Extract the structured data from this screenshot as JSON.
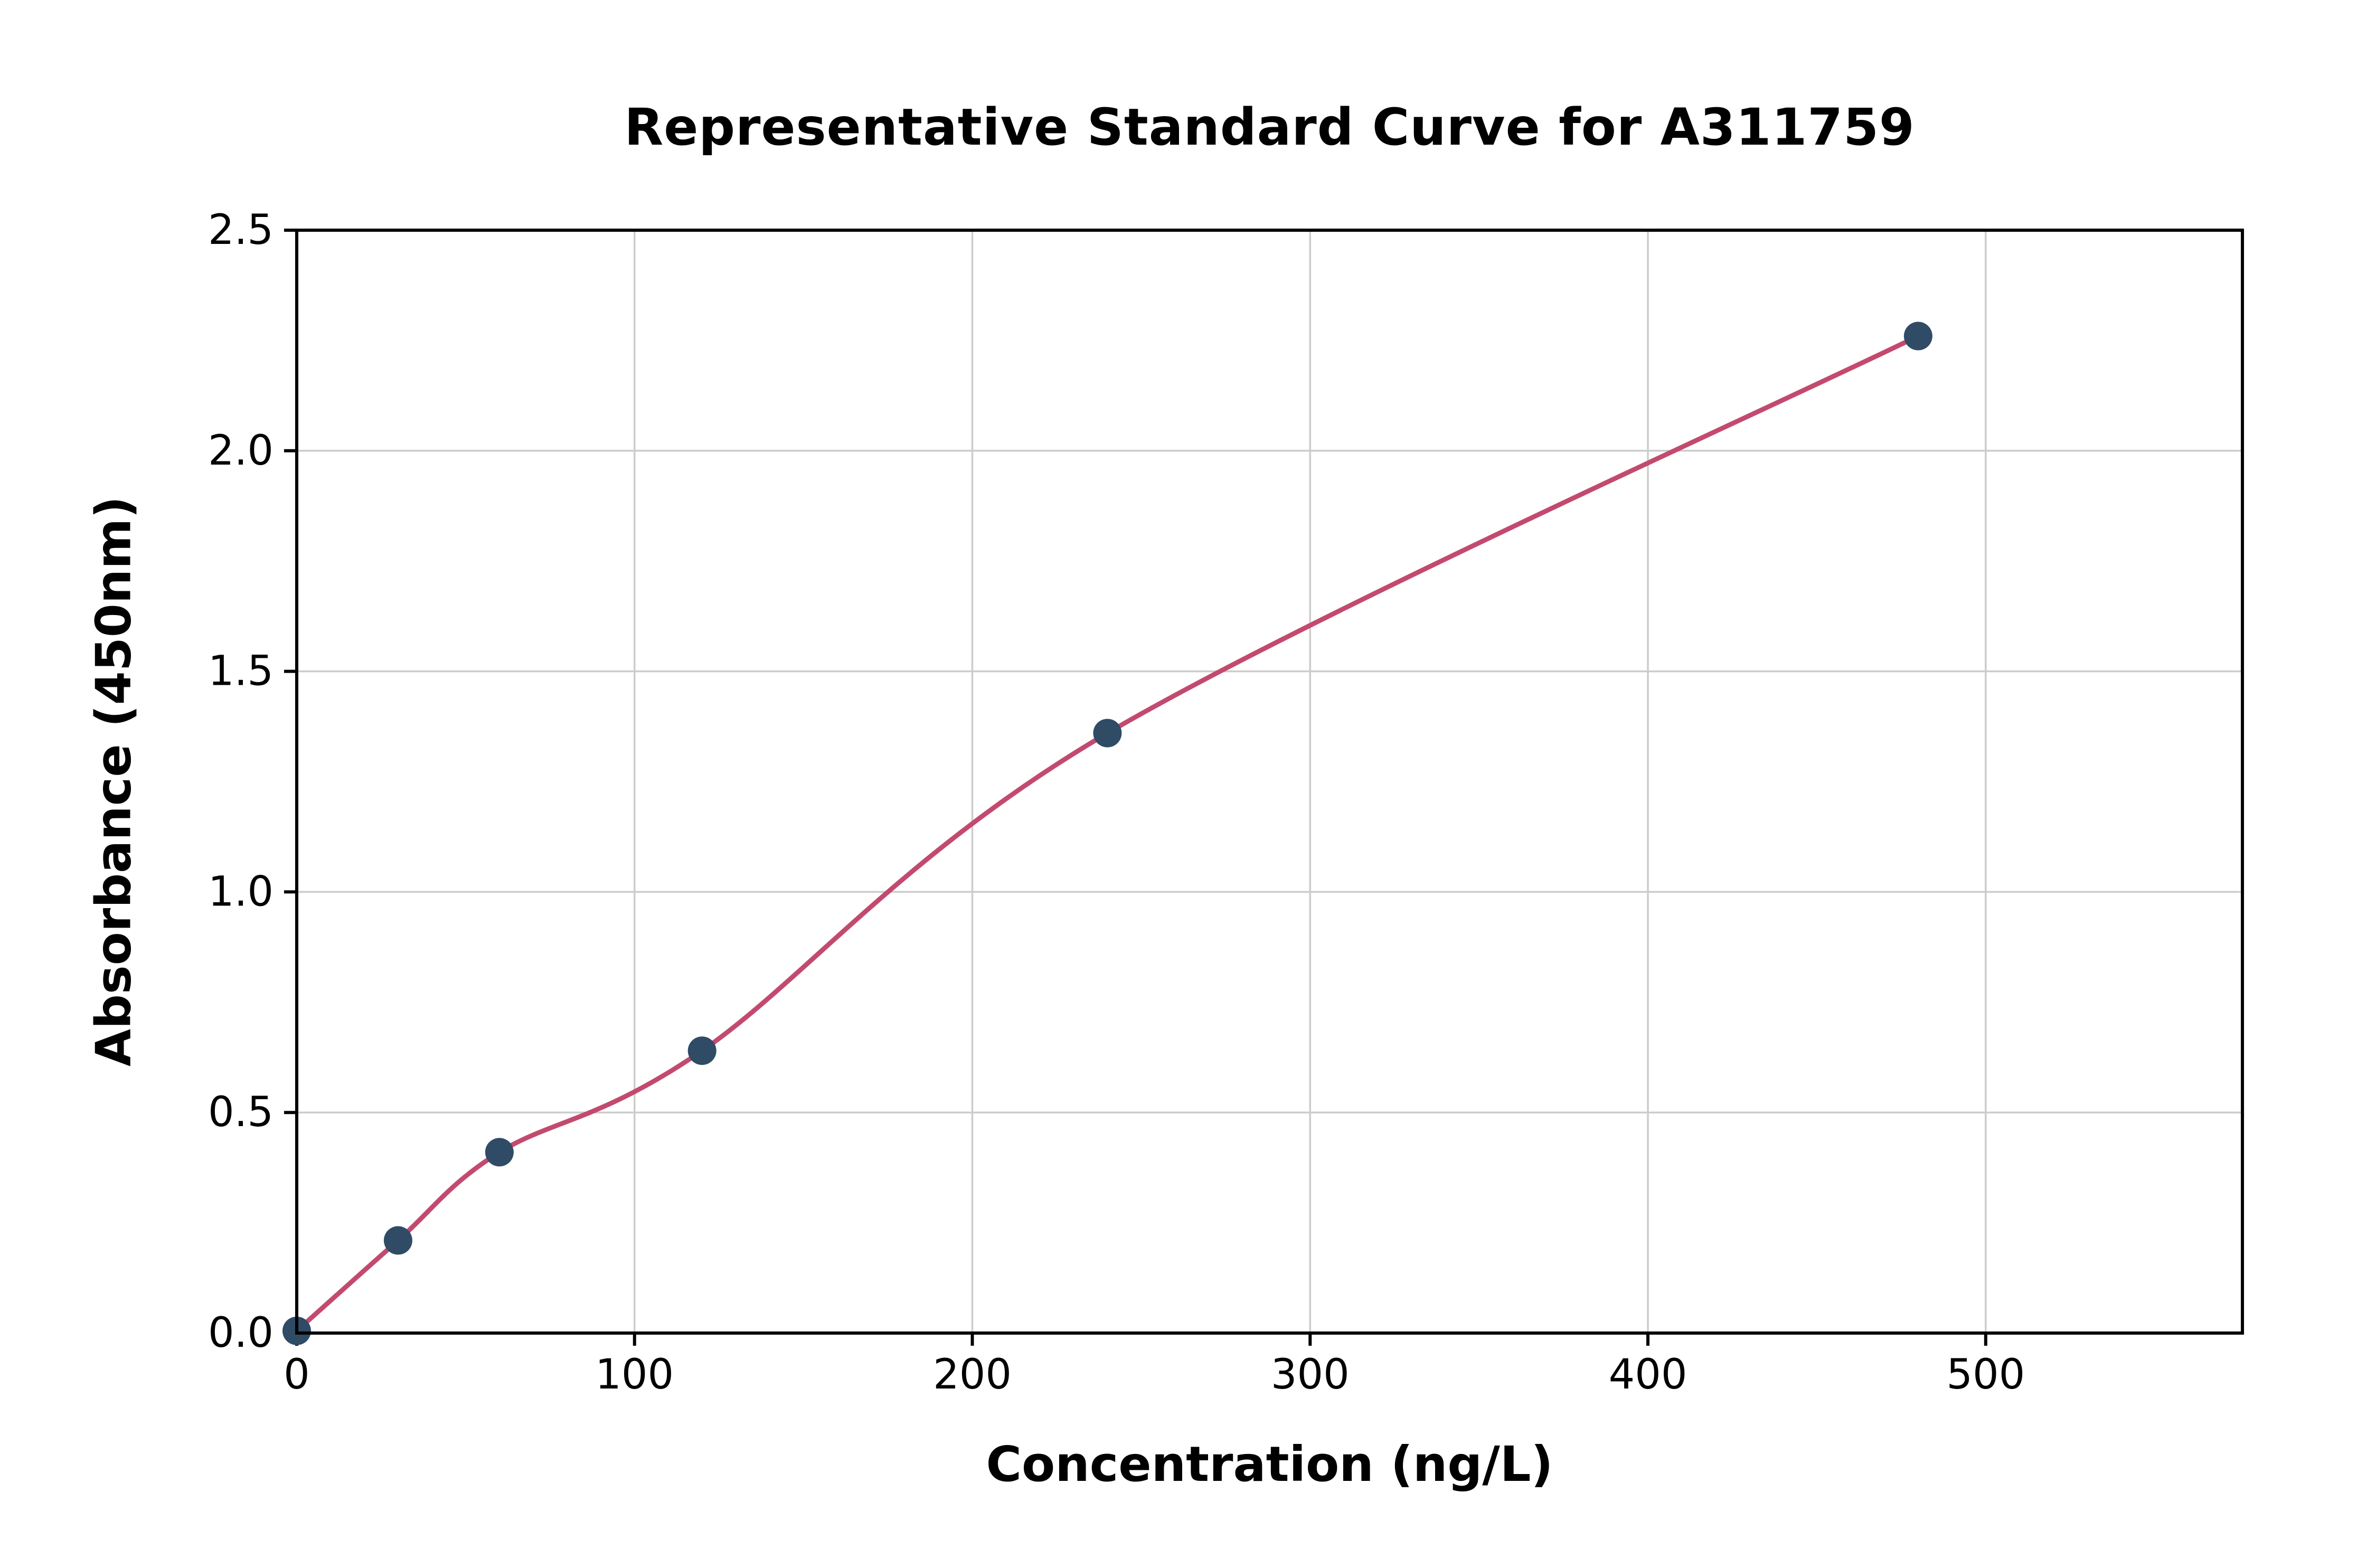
{
  "chart_data": {
    "type": "scatter",
    "title": "Representative Standard Curve for A311759",
    "xlabel": "Concentration (ng/L)",
    "ylabel": "Absorbance (450nm)",
    "xlim": [
      0,
      576
    ],
    "ylim": [
      0,
      2.5
    ],
    "x_ticks": [
      0,
      100,
      200,
      300,
      400,
      500
    ],
    "x_tick_labels": [
      "0",
      "100",
      "200",
      "300",
      "400",
      "500"
    ],
    "y_ticks": [
      0.0,
      0.5,
      1.0,
      1.5,
      2.0,
      2.5
    ],
    "y_tick_labels": [
      "0.0",
      "0.5",
      "1.0",
      "1.5",
      "2.0",
      "2.5"
    ],
    "grid": true,
    "legend": "none",
    "points": [
      {
        "x": 0,
        "y": 0.005
      },
      {
        "x": 30,
        "y": 0.21
      },
      {
        "x": 60,
        "y": 0.41
      },
      {
        "x": 120,
        "y": 0.64
      },
      {
        "x": 240,
        "y": 1.36
      },
      {
        "x": 480,
        "y": 2.26
      }
    ],
    "curve": {
      "description": "smooth fit line passing through the standard points from (0, 0.005) to (480, 2.26)"
    },
    "colors": {
      "curve": "#c34a6f",
      "marker": "#2f4b66",
      "grid": "#cccccc",
      "frame": "#000000",
      "background": "#ffffff"
    }
  }
}
